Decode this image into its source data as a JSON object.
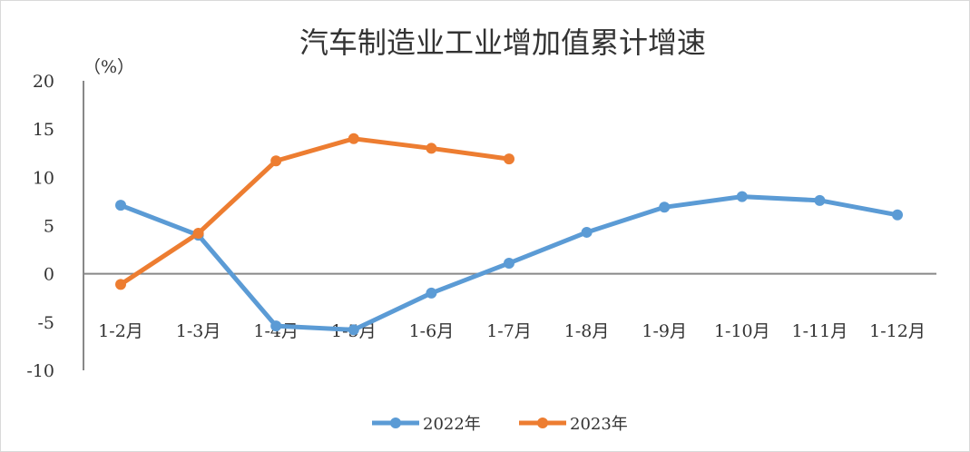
{
  "chart_data": {
    "type": "line",
    "title": "汽车制造业工业增加值累计增速",
    "ylabel": "（%）",
    "xlabel": "",
    "categories": [
      "1-2月",
      "1-3月",
      "1-4月",
      "1-5月",
      "1-6月",
      "1-7月",
      "1-8月",
      "1-9月",
      "1-10月",
      "1-11月",
      "1-12月"
    ],
    "ylim": [
      -10,
      20
    ],
    "yticks": [
      "20",
      "15",
      "10",
      "5",
      "0",
      "-5",
      "-10"
    ],
    "ytick_values": [
      20,
      15,
      10,
      5,
      0,
      -5,
      -10
    ],
    "negative_tick_color": "#e02020",
    "grid": false,
    "legend_position": "bottom",
    "series": [
      {
        "name": "2022年",
        "color": "#5b9bd5",
        "values": [
          7.1,
          4.0,
          -5.4,
          -5.8,
          -2.0,
          1.1,
          4.3,
          6.9,
          8.0,
          7.6,
          6.1
        ]
      },
      {
        "name": "2023年",
        "color": "#ed7d31",
        "values": [
          -1.1,
          4.2,
          11.7,
          14.0,
          13.0,
          11.9,
          null,
          null,
          null,
          null,
          null
        ]
      }
    ]
  }
}
